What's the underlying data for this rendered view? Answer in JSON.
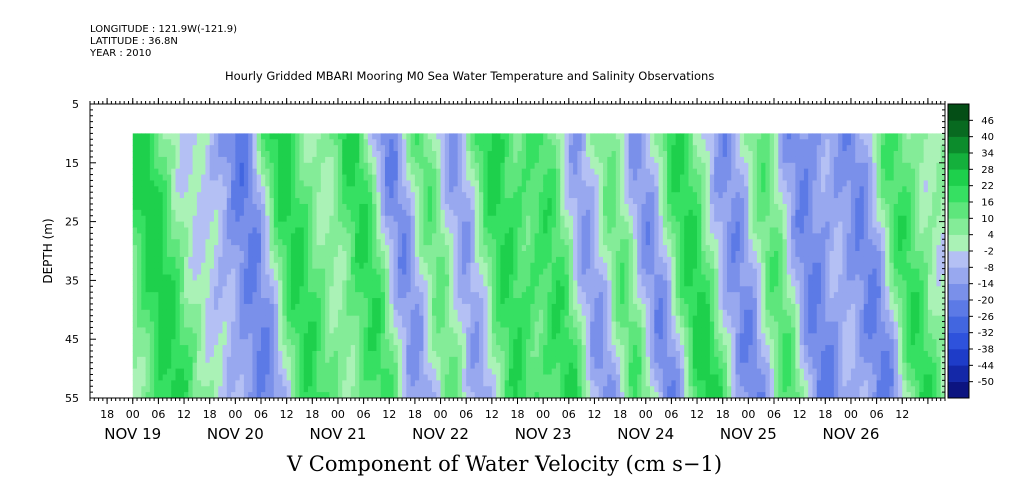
{
  "header": {
    "longitude": "LONGITUDE : 121.9W(-121.9)",
    "latitude": "LATITUDE : 36.8N",
    "year": "YEAR : 2010"
  },
  "chart_data": {
    "type": "heatmap",
    "title": "Hourly Gridded MBARI Mooring M0 Sea Water Temperature and Salinity Observations",
    "xlabel": "V Component of Water Velocity (cm s−1)",
    "ylabel": "DEPTH (m)",
    "x_unit": "hour",
    "xlim": [
      "2010-11-18 14:00",
      "2010-11-26 22:00"
    ],
    "ylim": [
      5,
      55
    ],
    "y_inverted": true,
    "y_ticks": [
      5,
      15,
      25,
      35,
      45,
      55
    ],
    "x_hour_ticks": [
      "18",
      "00",
      "06",
      "12",
      "18",
      "00",
      "06",
      "12",
      "18",
      "00",
      "06",
      "12",
      "18",
      "00",
      "06",
      "12",
      "18",
      "00",
      "06",
      "12",
      "18",
      "00",
      "06",
      "12",
      "18",
      "00",
      "06",
      "12",
      "18",
      "00",
      "06",
      "12"
    ],
    "x_date_ticks": [
      "NOV 19",
      "NOV 20",
      "NOV 21",
      "NOV 22",
      "NOV 23",
      "NOV 24",
      "NOV 25",
      "NOV 26"
    ],
    "data_extent": {
      "depth": [
        10,
        55
      ],
      "time_start": "2010-11-19 00:00"
    },
    "colorbar": {
      "levels": [
        -50,
        -44,
        -38,
        -32,
        -26,
        -20,
        -14,
        -8,
        -2,
        4,
        10,
        16,
        22,
        28,
        34,
        40,
        46
      ],
      "labels": [
        "46",
        "40",
        "34",
        "28",
        "22",
        "16",
        "10",
        "4",
        "-2",
        "-8",
        "-14",
        "-20",
        "-26",
        "-32",
        "-38",
        "-44",
        "-50"
      ],
      "colors": [
        "#0c1480",
        "#1428a8",
        "#1e3cc8",
        "#2e52dc",
        "#4266e0",
        "#5c7ae6",
        "#7a90ea",
        "#98a8ef",
        "#b4c0f4",
        "#aaf2b6",
        "#84ec98",
        "#5ee67c",
        "#36e062",
        "#1ed04c",
        "#14b03c",
        "#0c8c2c",
        "#086a20",
        "#044e16"
      ]
    },
    "features": {
      "positive_bands_utc": [
        "2010-11-19 01:00",
        "2010-11-20 09:00",
        "2010-11-21 03:00",
        "2010-11-21 19:00",
        "2010-11-22 10:00",
        "2010-11-23 00:00",
        "2010-11-23 15:00",
        "2010-11-24 07:00",
        "2010-11-25 02:00",
        "2010-11-26 08:00"
      ],
      "negative_bands_utc": [
        "2010-11-20 00:00",
        "2010-11-21 11:00",
        "2010-11-22 01:00",
        "2010-11-23 07:00",
        "2010-11-23 21:00",
        "2010-11-24 19:00",
        "2010-11-25 10:00",
        "2010-11-26 02:00"
      ],
      "v_range": [
        -34,
        24
      ]
    }
  }
}
